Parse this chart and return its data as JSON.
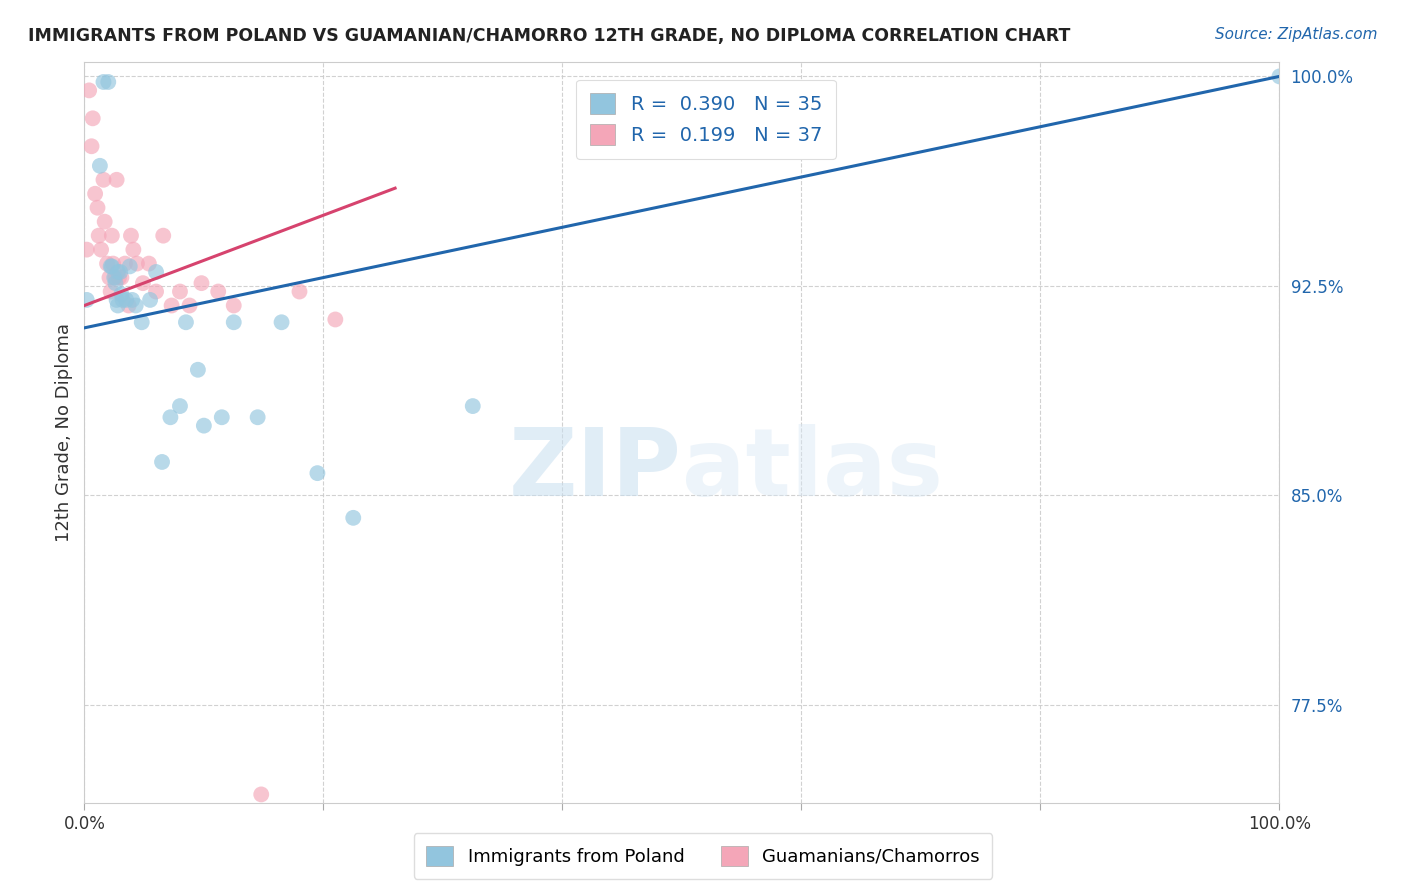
{
  "title": "IMMIGRANTS FROM POLAND VS GUAMANIAN/CHAMORRO 12TH GRADE, NO DIPLOMA CORRELATION CHART",
  "source": "Source: ZipAtlas.com",
  "ylabel": "12th Grade, No Diploma",
  "xlim": [
    0.0,
    1.0
  ],
  "ylim": [
    0.74,
    1.005
  ],
  "yticks": [
    0.775,
    0.85,
    0.925,
    1.0
  ],
  "ytick_labels": [
    "77.5%",
    "85.0%",
    "92.5%",
    "100.0%"
  ],
  "xticks": [
    0.0,
    0.2,
    0.4,
    0.6,
    0.8,
    1.0
  ],
  "xtick_labels": [
    "0.0%",
    "",
    "",
    "",
    "",
    "100.0%"
  ],
  "legend_r_blue_val": "0.390",
  "legend_n_blue_val": "35",
  "legend_r_pink_val": "0.199",
  "legend_n_pink_val": "37",
  "blue_color": "#92c5de",
  "pink_color": "#f4a6b8",
  "blue_line_color": "#2166ac",
  "pink_line_color": "#d6436e",
  "blue_line_x0": 0.0,
  "blue_line_y0": 0.91,
  "blue_line_x1": 1.0,
  "blue_line_y1": 1.0,
  "pink_line_x0": 0.0,
  "pink_line_y0": 0.918,
  "pink_line_x1": 0.26,
  "pink_line_y1": 0.96,
  "blue_scatter_x": [
    0.002,
    0.013,
    0.016,
    0.02,
    0.022,
    0.023,
    0.025,
    0.026,
    0.027,
    0.028,
    0.028,
    0.03,
    0.031,
    0.032,
    0.035,
    0.038,
    0.04,
    0.043,
    0.048,
    0.055,
    0.06,
    0.065,
    0.072,
    0.08,
    0.085,
    0.095,
    0.1,
    0.115,
    0.125,
    0.145,
    0.165,
    0.195,
    0.225,
    0.325,
    1.0
  ],
  "blue_scatter_y": [
    0.92,
    0.968,
    0.998,
    0.998,
    0.932,
    0.932,
    0.928,
    0.926,
    0.92,
    0.918,
    0.93,
    0.93,
    0.922,
    0.92,
    0.92,
    0.932,
    0.92,
    0.918,
    0.912,
    0.92,
    0.93,
    0.862,
    0.878,
    0.882,
    0.912,
    0.895,
    0.875,
    0.878,
    0.912,
    0.878,
    0.912,
    0.858,
    0.842,
    0.882,
    1.0
  ],
  "pink_scatter_x": [
    0.002,
    0.004,
    0.006,
    0.007,
    0.009,
    0.011,
    0.012,
    0.014,
    0.016,
    0.017,
    0.019,
    0.021,
    0.022,
    0.023,
    0.024,
    0.026,
    0.027,
    0.029,
    0.031,
    0.034,
    0.037,
    0.039,
    0.041,
    0.044,
    0.049,
    0.054,
    0.06,
    0.066,
    0.073,
    0.08,
    0.088,
    0.098,
    0.112,
    0.148,
    0.18,
    0.21,
    0.125
  ],
  "pink_scatter_y": [
    0.938,
    0.995,
    0.975,
    0.985,
    0.958,
    0.953,
    0.943,
    0.938,
    0.963,
    0.948,
    0.933,
    0.928,
    0.923,
    0.943,
    0.933,
    0.928,
    0.963,
    0.928,
    0.928,
    0.933,
    0.918,
    0.943,
    0.938,
    0.933,
    0.926,
    0.933,
    0.923,
    0.943,
    0.918,
    0.923,
    0.918,
    0.926,
    0.923,
    0.743,
    0.923,
    0.913,
    0.918
  ],
  "watermark_zip": "ZIP",
  "watermark_atlas": "atlas",
  "legend_label_blue": "Immigrants from Poland",
  "legend_label_pink": "Guamanians/Chamorros"
}
